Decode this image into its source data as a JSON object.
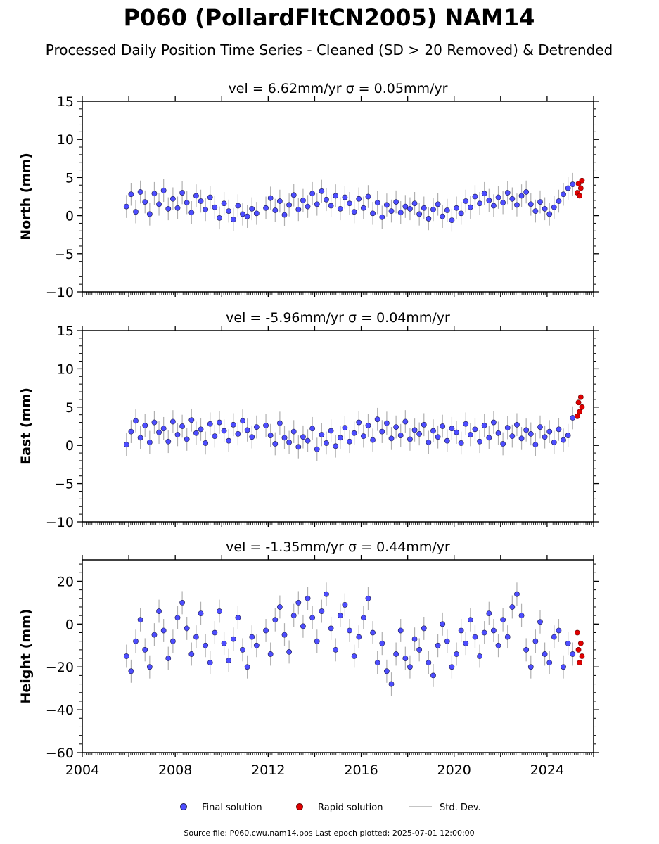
{
  "figure": {
    "title": "P060 (PollardFltCN2005) NAM14",
    "subtitle": "Processed Daily Position Time Series - Cleaned (SD > 20 Removed) & Detrended",
    "footer": "Source file: P060.cwu.nam14.pos  Last epoch plotted: 2025-07-01 12:00:00"
  },
  "legend": {
    "final": "Final solution",
    "rapid": "Rapid solution",
    "std": "Std. Dev."
  },
  "colors": {
    "final": "#4d4dff",
    "rapid": "#e00000",
    "std": "#b0b0b0"
  },
  "chart_data": [
    {
      "type": "scatter",
      "title": "vel = 6.62mm/yr   σ = 0.05mm/yr",
      "ylabel": "North (mm)",
      "xlim": [
        2004.0,
        2026.0
      ],
      "ylim": [
        -10,
        15
      ],
      "xticks": [
        2004,
        2008,
        2012,
        2016,
        2020,
        2024
      ],
      "yticks": [
        -10,
        -5,
        0,
        5,
        10,
        15
      ],
      "ytick_labels": [
        "−10",
        "−5",
        "0",
        "5",
        "10",
        "15"
      ],
      "grid": false,
      "series": [
        {
          "name": "Final solution",
          "x": [
            2005.9,
            2006.1,
            2006.3,
            2006.5,
            2006.7,
            2006.9,
            2007.1,
            2007.3,
            2007.5,
            2007.7,
            2007.9,
            2008.1,
            2008.3,
            2008.5,
            2008.7,
            2008.9,
            2009.1,
            2009.3,
            2009.5,
            2009.7,
            2009.9,
            2010.1,
            2010.3,
            2010.5,
            2010.7,
            2010.9,
            2011.1,
            2011.3,
            2011.5,
            2011.9,
            2012.1,
            2012.3,
            2012.5,
            2012.7,
            2012.9,
            2013.1,
            2013.3,
            2013.5,
            2013.7,
            2013.9,
            2014.1,
            2014.3,
            2014.5,
            2014.7,
            2014.9,
            2015.1,
            2015.3,
            2015.5,
            2015.7,
            2015.9,
            2016.1,
            2016.3,
            2016.5,
            2016.7,
            2016.9,
            2017.1,
            2017.3,
            2017.5,
            2017.7,
            2017.9,
            2018.1,
            2018.3,
            2018.5,
            2018.7,
            2018.9,
            2019.1,
            2019.3,
            2019.5,
            2019.7,
            2019.9,
            2020.1,
            2020.3,
            2020.5,
            2020.7,
            2020.9,
            2021.1,
            2021.3,
            2021.5,
            2021.7,
            2021.9,
            2022.1,
            2022.3,
            2022.5,
            2022.7,
            2022.9,
            2023.1,
            2023.3,
            2023.5,
            2023.7,
            2023.9,
            2024.1,
            2024.3,
            2024.5,
            2024.7,
            2024.9,
            2025.1
          ],
          "y": [
            1.2,
            2.8,
            0.5,
            3.1,
            1.8,
            0.2,
            2.9,
            1.5,
            3.3,
            0.9,
            2.2,
            1.0,
            3.0,
            1.7,
            0.4,
            2.6,
            1.9,
            0.8,
            2.4,
            1.1,
            -0.3,
            1.6,
            0.6,
            -0.5,
            1.3,
            0.2,
            -0.1,
            0.9,
            0.3,
            1.0,
            2.3,
            0.7,
            1.9,
            0.1,
            1.4,
            2.7,
            0.8,
            2.0,
            1.2,
            2.9,
            1.5,
            3.2,
            2.1,
            1.3,
            2.6,
            0.9,
            2.4,
            1.6,
            0.5,
            2.2,
            1.0,
            2.5,
            0.3,
            1.7,
            -0.2,
            1.4,
            0.6,
            1.8,
            0.4,
            1.2,
            0.9,
            1.6,
            0.2,
            1.0,
            -0.4,
            0.8,
            1.5,
            -0.1,
            0.7,
            -0.6,
            1.0,
            0.3,
            1.9,
            1.1,
            2.5,
            1.6,
            2.9,
            2.0,
            1.3,
            2.4,
            1.7,
            3.0,
            2.2,
            1.4,
            2.6,
            3.1,
            1.5,
            0.6,
            1.8,
            0.9,
            0.2,
            1.1,
            1.9,
            2.8,
            3.6,
            4.1
          ]
        },
        {
          "name": "Rapid solution",
          "x": [
            2025.3,
            2025.35,
            2025.4,
            2025.45,
            2025.5
          ],
          "y": [
            3.0,
            4.2,
            2.6,
            3.6,
            4.6
          ]
        }
      ]
    },
    {
      "type": "scatter",
      "title": "vel = -5.96mm/yr   σ = 0.04mm/yr",
      "ylabel": "East (mm)",
      "xlim": [
        2004.0,
        2026.0
      ],
      "ylim": [
        -10,
        15
      ],
      "xticks": [
        2004,
        2008,
        2012,
        2016,
        2020,
        2024
      ],
      "yticks": [
        -10,
        -5,
        0,
        5,
        10,
        15
      ],
      "ytick_labels": [
        "−10",
        "−5",
        "0",
        "5",
        "10",
        "15"
      ],
      "grid": false,
      "series": [
        {
          "name": "Final solution",
          "x": [
            2005.9,
            2006.1,
            2006.3,
            2006.5,
            2006.7,
            2006.9,
            2007.1,
            2007.3,
            2007.5,
            2007.7,
            2007.9,
            2008.1,
            2008.3,
            2008.5,
            2008.7,
            2008.9,
            2009.1,
            2009.3,
            2009.5,
            2009.7,
            2009.9,
            2010.1,
            2010.3,
            2010.5,
            2010.7,
            2010.9,
            2011.1,
            2011.3,
            2011.5,
            2011.9,
            2012.1,
            2012.3,
            2012.5,
            2012.7,
            2012.9,
            2013.1,
            2013.3,
            2013.5,
            2013.7,
            2013.9,
            2014.1,
            2014.3,
            2014.5,
            2014.7,
            2014.9,
            2015.1,
            2015.3,
            2015.5,
            2015.7,
            2015.9,
            2016.1,
            2016.3,
            2016.5,
            2016.7,
            2016.9,
            2017.1,
            2017.3,
            2017.5,
            2017.7,
            2017.9,
            2018.1,
            2018.3,
            2018.5,
            2018.7,
            2018.9,
            2019.1,
            2019.3,
            2019.5,
            2019.7,
            2019.9,
            2020.1,
            2020.3,
            2020.5,
            2020.7,
            2020.9,
            2021.1,
            2021.3,
            2021.5,
            2021.7,
            2021.9,
            2022.1,
            2022.3,
            2022.5,
            2022.7,
            2022.9,
            2023.1,
            2023.3,
            2023.5,
            2023.7,
            2023.9,
            2024.1,
            2024.3,
            2024.5,
            2024.7,
            2024.9,
            2025.1
          ],
          "y": [
            0.1,
            1.8,
            3.2,
            1.0,
            2.6,
            0.4,
            3.0,
            1.7,
            2.2,
            0.5,
            3.1,
            1.4,
            2.5,
            0.8,
            3.3,
            1.6,
            2.1,
            0.3,
            2.8,
            1.2,
            3.0,
            1.9,
            0.6,
            2.7,
            1.5,
            3.2,
            2.0,
            1.1,
            2.4,
            2.6,
            1.3,
            0.2,
            2.9,
            1.0,
            0.4,
            1.8,
            -0.2,
            1.1,
            0.6,
            2.2,
            -0.5,
            1.4,
            0.3,
            1.9,
            -0.1,
            1.0,
            2.3,
            0.5,
            1.6,
            3.0,
            1.2,
            2.6,
            0.7,
            3.4,
            1.8,
            2.9,
            0.9,
            2.4,
            1.3,
            3.1,
            0.8,
            2.0,
            1.5,
            2.7,
            0.4,
            1.9,
            1.1,
            2.5,
            0.6,
            2.2,
            1.7,
            0.3,
            2.8,
            1.4,
            2.1,
            0.5,
            2.6,
            1.0,
            3.0,
            1.6,
            0.2,
            2.3,
            1.2,
            2.7,
            0.9,
            2.0,
            1.5,
            0.1,
            2.4,
            1.1,
            1.8,
            0.4,
            2.1,
            0.7,
            1.3,
            3.6
          ]
        },
        {
          "name": "Rapid solution",
          "x": [
            2025.3,
            2025.35,
            2025.4,
            2025.45,
            2025.5
          ],
          "y": [
            3.8,
            5.6,
            4.4,
            6.3,
            5.0
          ]
        }
      ]
    },
    {
      "type": "scatter",
      "title": "vel = -1.35mm/yr   σ = 0.44mm/yr",
      "ylabel": "Height (mm)",
      "xlim": [
        2004.0,
        2026.0
      ],
      "ylim": [
        -60,
        30
      ],
      "xticks": [
        2004,
        2008,
        2012,
        2016,
        2020,
        2024
      ],
      "yticks": [
        -60,
        -40,
        -20,
        0,
        20
      ],
      "ytick_labels": [
        "−60",
        "−40",
        "−20",
        "0",
        "20"
      ],
      "grid": false,
      "series": [
        {
          "name": "Final solution",
          "x": [
            2005.9,
            2006.1,
            2006.3,
            2006.5,
            2006.7,
            2006.9,
            2007.1,
            2007.3,
            2007.5,
            2007.7,
            2007.9,
            2008.1,
            2008.3,
            2008.5,
            2008.7,
            2008.9,
            2009.1,
            2009.3,
            2009.5,
            2009.7,
            2009.9,
            2010.1,
            2010.3,
            2010.5,
            2010.7,
            2010.9,
            2011.1,
            2011.3,
            2011.5,
            2011.9,
            2012.1,
            2012.3,
            2012.5,
            2012.7,
            2012.9,
            2013.1,
            2013.3,
            2013.5,
            2013.7,
            2013.9,
            2014.1,
            2014.3,
            2014.5,
            2014.7,
            2014.9,
            2015.1,
            2015.3,
            2015.5,
            2015.7,
            2015.9,
            2016.1,
            2016.3,
            2016.5,
            2016.7,
            2016.9,
            2017.1,
            2017.3,
            2017.5,
            2017.7,
            2017.9,
            2018.1,
            2018.3,
            2018.5,
            2018.7,
            2018.9,
            2019.1,
            2019.3,
            2019.5,
            2019.7,
            2019.9,
            2020.1,
            2020.3,
            2020.5,
            2020.7,
            2020.9,
            2021.1,
            2021.3,
            2021.5,
            2021.7,
            2021.9,
            2022.1,
            2022.3,
            2022.5,
            2022.7,
            2022.9,
            2023.1,
            2023.3,
            2023.5,
            2023.7,
            2023.9,
            2024.1,
            2024.3,
            2024.5,
            2024.7,
            2024.9,
            2025.1
          ],
          "y": [
            -15,
            -22,
            -8,
            2,
            -12,
            -20,
            -5,
            6,
            -3,
            -16,
            -8,
            3,
            10,
            -2,
            -14,
            -6,
            5,
            -10,
            -18,
            -4,
            6,
            -9,
            -17,
            -7,
            3,
            -12,
            -20,
            -6,
            -10,
            -3,
            -14,
            2,
            8,
            -5,
            -13,
            4,
            10,
            -1,
            12,
            3,
            -8,
            6,
            14,
            -2,
            -12,
            4,
            9,
            -3,
            -15,
            -6,
            3,
            12,
            -4,
            -18,
            -9,
            -22,
            -28,
            -14,
            -3,
            -16,
            -20,
            -7,
            -12,
            -2,
            -18,
            -24,
            -10,
            0,
            -8,
            -20,
            -14,
            -3,
            -9,
            2,
            -6,
            -15,
            -4,
            5,
            -3,
            -10,
            2,
            -6,
            8,
            14,
            4,
            -12,
            -20,
            -8,
            1,
            -14,
            -18,
            -6,
            -3,
            -20,
            -9,
            -14
          ]
        },
        {
          "name": "Rapid solution",
          "x": [
            2025.3,
            2025.35,
            2025.4,
            2025.45,
            2025.5
          ],
          "y": [
            -4,
            -12,
            -18,
            -9,
            -15
          ]
        }
      ]
    }
  ]
}
